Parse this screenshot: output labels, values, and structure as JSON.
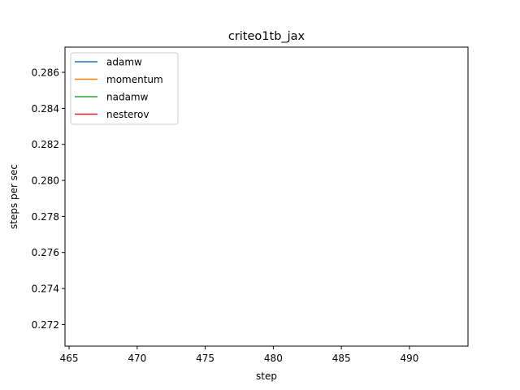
{
  "chart_data": {
    "type": "line",
    "title": "criteo1tb_jax",
    "xlabel": "step",
    "ylabel": "steps per sec",
    "xlim": [
      464.7,
      494.3
    ],
    "ylim": [
      0.2708,
      0.2874
    ],
    "xticks": [
      465,
      470,
      475,
      480,
      485,
      490
    ],
    "yticks": [
      0.272,
      0.274,
      0.276,
      0.278,
      0.28,
      0.282,
      0.284,
      0.286
    ],
    "ytick_labels": [
      "0.272",
      "0.274",
      "0.276",
      "0.278",
      "0.280",
      "0.282",
      "0.284",
      "0.286"
    ],
    "grid": false,
    "legend_position": "upper-left",
    "series": [
      {
        "name": "adamw",
        "color": "#1f77b4",
        "x": [],
        "y": []
      },
      {
        "name": "momentum",
        "color": "#ff7f0e",
        "x": [],
        "y": []
      },
      {
        "name": "nadamw",
        "color": "#2ca02c",
        "x": [],
        "y": []
      },
      {
        "name": "nesterov",
        "color": "#d62728",
        "x": [],
        "y": []
      }
    ]
  }
}
